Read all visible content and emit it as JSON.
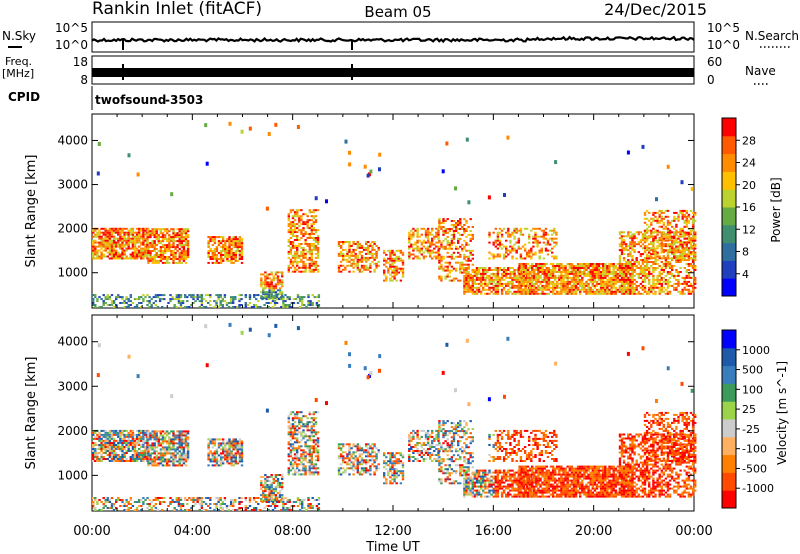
{
  "header": {
    "title": "Rankin Inlet (fitACF)",
    "beam": "Beam 05",
    "date": "24/Dec/2015"
  },
  "panels": {
    "nsky": {
      "label": "N.Sky",
      "ytick_top": "10^5",
      "ytick_bottom": "10^0"
    },
    "nsearch": {
      "label": "N.Search",
      "ytick_top": "10^5",
      "ytick_bottom": "10^0"
    },
    "freq": {
      "label": "Freq.",
      "unit": "[MHz]",
      "ytick_top": "18",
      "ytick_bottom": "8"
    },
    "nave": {
      "label": "Nave",
      "ytick_top": "60",
      "ytick_bottom": "0"
    },
    "cpid": {
      "label": "CPID",
      "program": "twofsound",
      "program_id": "-3503"
    }
  },
  "colors": {
    "power": [
      "#0000ff",
      "#1f3fbf",
      "#2f6f9f",
      "#3f8f6f",
      "#66aa44",
      "#bcd22e",
      "#ffc000",
      "#ff8c00",
      "#ff5a00",
      "#ff0000"
    ],
    "velocity": [
      "#ff0000",
      "#ff4a00",
      "#ff7f00",
      "#ffb060",
      "#cccccc",
      "#9bd34a",
      "#3c9a5a",
      "#3a7dbd",
      "#1e5aaa",
      "#0000ff"
    ]
  },
  "chart_data": [
    {
      "type": "heatmap",
      "name": "Power",
      "ylabel": "Slant Range [km]",
      "yticks": [
        "1000",
        "2000",
        "3000",
        "4000"
      ],
      "xticks": [
        "00:00",
        "04:00",
        "08:00",
        "12:00",
        "16:00",
        "20:00",
        "00:00"
      ],
      "xlabel": "Time UT",
      "ylim": [
        200,
        4600
      ],
      "colorbar": {
        "label": "Power [dB]",
        "ticks": [
          "4",
          "8",
          "12",
          "16",
          "20",
          "24",
          "28"
        ]
      }
    },
    {
      "type": "heatmap",
      "name": "Velocity",
      "ylabel": "Slant Range [km]",
      "yticks": [
        "1000",
        "2000",
        "3000",
        "4000"
      ],
      "xticks": [
        "00:00",
        "04:00",
        "08:00",
        "12:00",
        "16:00",
        "20:00",
        "00:00"
      ],
      "xlabel": "Time UT",
      "ylim": [
        200,
        4600
      ],
      "colorbar": {
        "label": "Velocity [m s^-1]",
        "ticks": [
          "1000",
          "500",
          "100",
          "25",
          "-25",
          "-100",
          "-500",
          "-1000"
        ]
      }
    }
  ]
}
